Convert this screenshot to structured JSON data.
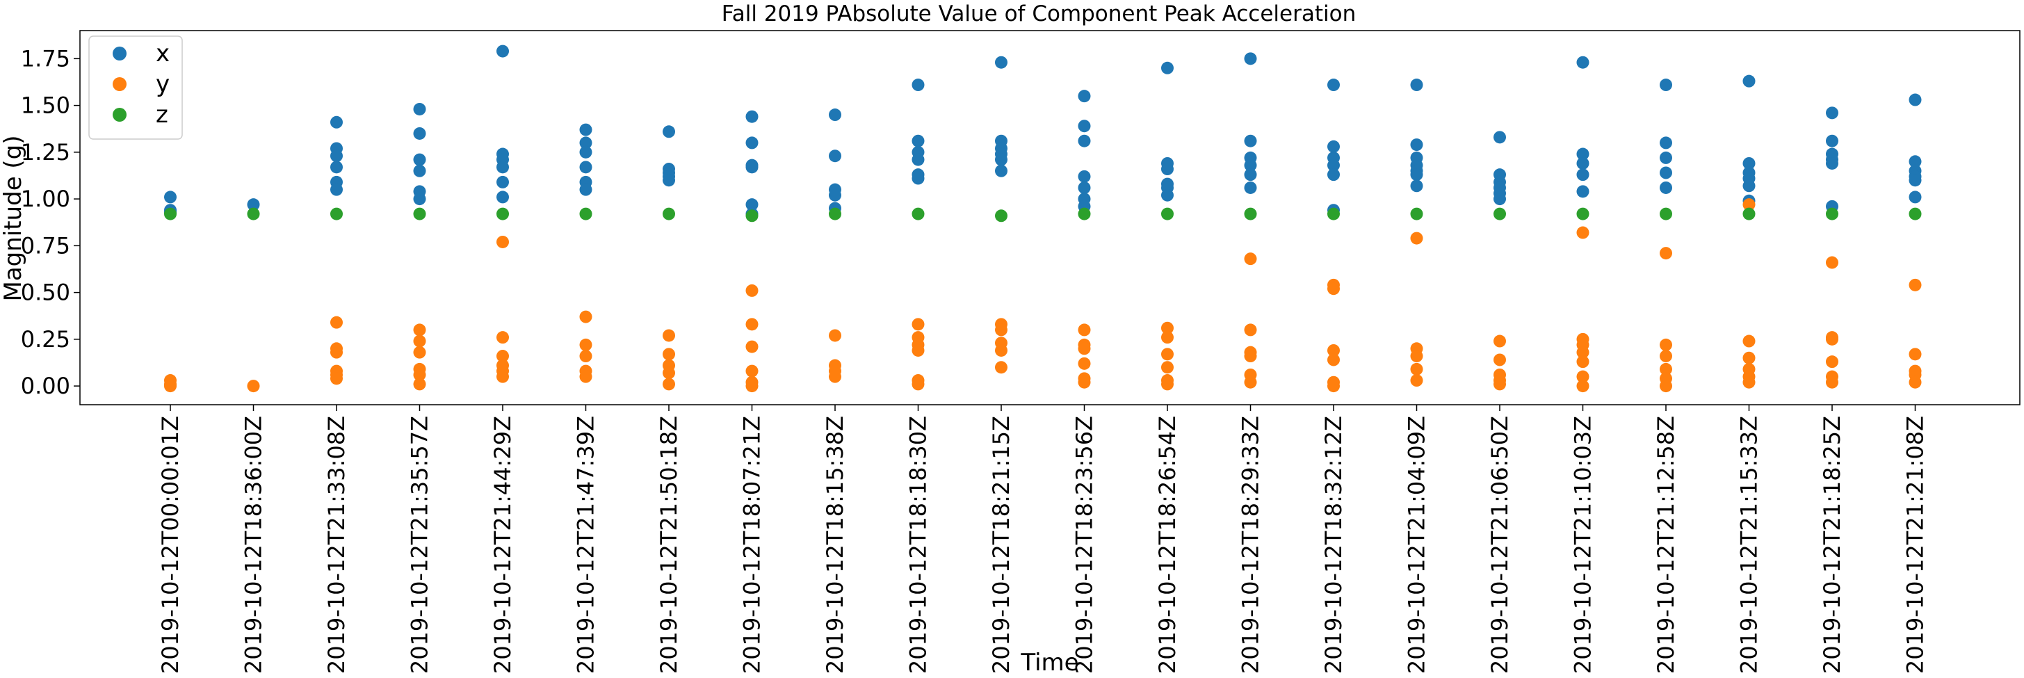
{
  "chart_data": {
    "type": "scatter",
    "title": "Fall 2019 PAbsolute Value of Component Peak Acceleration",
    "xlabel": "Time",
    "ylabel": "Magnitude (g)",
    "ylim": [
      -0.1,
      1.9
    ],
    "yticks": [
      "0.00",
      "0.25",
      "0.50",
      "0.75",
      "1.00",
      "1.25",
      "1.50",
      "1.75"
    ],
    "grid": false,
    "legend_position": "top-left",
    "categories": [
      "2019-10-12T00:00:01Z",
      "2019-10-12T18:36:00Z",
      "2019-10-12T21:33:08Z",
      "2019-10-12T21:35:57Z",
      "2019-10-12T21:44:29Z",
      "2019-10-12T21:47:39Z",
      "2019-10-12T21:50:18Z",
      "2019-10-12T18:07:21Z",
      "2019-10-12T18:15:38Z",
      "2019-10-12T18:18:30Z",
      "2019-10-12T18:21:15Z",
      "2019-10-12T18:23:56Z",
      "2019-10-12T18:26:54Z",
      "2019-10-12T18:29:33Z",
      "2019-10-12T18:32:12Z",
      "2019-10-12T21:04:09Z",
      "2019-10-12T21:06:50Z",
      "2019-10-12T21:10:03Z",
      "2019-10-12T21:12:58Z",
      "2019-10-12T21:15:33Z",
      "2019-10-12T21:18:25Z",
      "2019-10-12T21:21:08Z"
    ],
    "series": [
      {
        "name": "x",
        "color": "#1f77b4",
        "values": [
          [
            1.01,
            0.94,
            0.93
          ],
          [
            0.97
          ],
          [
            1.41,
            1.27,
            1.23,
            1.17,
            1.09,
            1.05
          ],
          [
            1.48,
            1.35,
            1.21,
            1.15,
            1.04,
            1.0
          ],
          [
            1.79,
            1.24,
            1.21,
            1.17,
            1.09,
            1.01
          ],
          [
            1.37,
            1.3,
            1.25,
            1.17,
            1.09,
            1.05
          ],
          [
            1.36,
            1.16,
            1.14,
            1.12,
            1.1
          ],
          [
            1.44,
            1.3,
            1.18,
            1.17,
            0.97,
            0.92
          ],
          [
            1.45,
            1.23,
            1.05,
            1.02,
            0.95
          ],
          [
            1.61,
            1.31,
            1.25,
            1.21,
            1.13,
            1.11
          ],
          [
            1.73,
            1.31,
            1.27,
            1.24,
            1.21,
            1.15
          ],
          [
            1.55,
            1.39,
            1.31,
            1.12,
            1.06,
            1.0,
            0.96
          ],
          [
            1.7,
            1.19,
            1.16,
            1.08,
            1.06,
            1.02
          ],
          [
            1.75,
            1.31,
            1.22,
            1.18,
            1.13,
            1.06
          ],
          [
            1.61,
            1.28,
            1.22,
            1.18,
            1.13,
            0.94
          ],
          [
            1.61,
            1.29,
            1.22,
            1.18,
            1.15,
            1.13,
            1.07
          ],
          [
            1.33,
            1.13,
            1.09,
            1.06,
            1.03,
            1.0
          ],
          [
            1.73,
            1.24,
            1.19,
            1.13,
            1.04
          ],
          [
            1.61,
            1.3,
            1.22,
            1.14,
            1.06
          ],
          [
            1.63,
            1.19,
            1.14,
            1.11,
            1.07,
            0.99
          ],
          [
            1.46,
            1.31,
            1.24,
            1.21,
            1.19,
            0.96
          ],
          [
            1.53,
            1.2,
            1.15,
            1.12,
            1.1,
            1.01
          ]
        ]
      },
      {
        "name": "y",
        "color": "#ff7f0e",
        "values": [
          [
            0.03,
            0.01,
            0.0
          ],
          [
            0.0
          ],
          [
            0.34,
            0.2,
            0.18,
            0.08,
            0.06,
            0.04
          ],
          [
            0.3,
            0.24,
            0.18,
            0.09,
            0.06,
            0.01
          ],
          [
            0.77,
            0.26,
            0.16,
            0.11,
            0.08,
            0.05
          ],
          [
            0.37,
            0.22,
            0.16,
            0.08,
            0.05
          ],
          [
            0.27,
            0.17,
            0.11,
            0.07,
            0.01
          ],
          [
            0.51,
            0.33,
            0.21,
            0.08,
            0.02,
            0.0
          ],
          [
            0.27,
            0.11,
            0.08,
            0.05
          ],
          [
            0.33,
            0.26,
            0.22,
            0.19,
            0.03,
            0.01
          ],
          [
            0.33,
            0.3,
            0.23,
            0.19,
            0.1
          ],
          [
            0.3,
            0.22,
            0.2,
            0.12,
            0.04,
            0.02
          ],
          [
            0.31,
            0.26,
            0.17,
            0.1,
            0.03,
            0.01
          ],
          [
            0.68,
            0.3,
            0.18,
            0.16,
            0.06,
            0.02
          ],
          [
            0.54,
            0.52,
            0.19,
            0.14,
            0.02,
            0.0
          ],
          [
            0.79,
            0.2,
            0.16,
            0.09,
            0.03
          ],
          [
            0.24,
            0.14,
            0.06,
            0.03,
            0.01
          ],
          [
            0.82,
            0.25,
            0.22,
            0.18,
            0.13,
            0.05,
            0.0
          ],
          [
            0.71,
            0.22,
            0.16,
            0.09,
            0.04,
            0.0
          ],
          [
            0.97,
            0.24,
            0.15,
            0.09,
            0.05,
            0.02
          ],
          [
            0.66,
            0.26,
            0.25,
            0.13,
            0.05,
            0.02
          ],
          [
            0.54,
            0.17,
            0.08,
            0.06,
            0.02
          ]
        ]
      },
      {
        "name": "z",
        "color": "#2ca02c",
        "values": [
          [
            0.92
          ],
          [
            0.92
          ],
          [
            0.92
          ],
          [
            0.92
          ],
          [
            0.92
          ],
          [
            0.92
          ],
          [
            0.92
          ],
          [
            0.91
          ],
          [
            0.92
          ],
          [
            0.92
          ],
          [
            0.91
          ],
          [
            0.92
          ],
          [
            0.92
          ],
          [
            0.92
          ],
          [
            0.92
          ],
          [
            0.92
          ],
          [
            0.92
          ],
          [
            0.92
          ],
          [
            0.92
          ],
          [
            0.92
          ],
          [
            0.92
          ],
          [
            0.92
          ]
        ]
      }
    ]
  }
}
